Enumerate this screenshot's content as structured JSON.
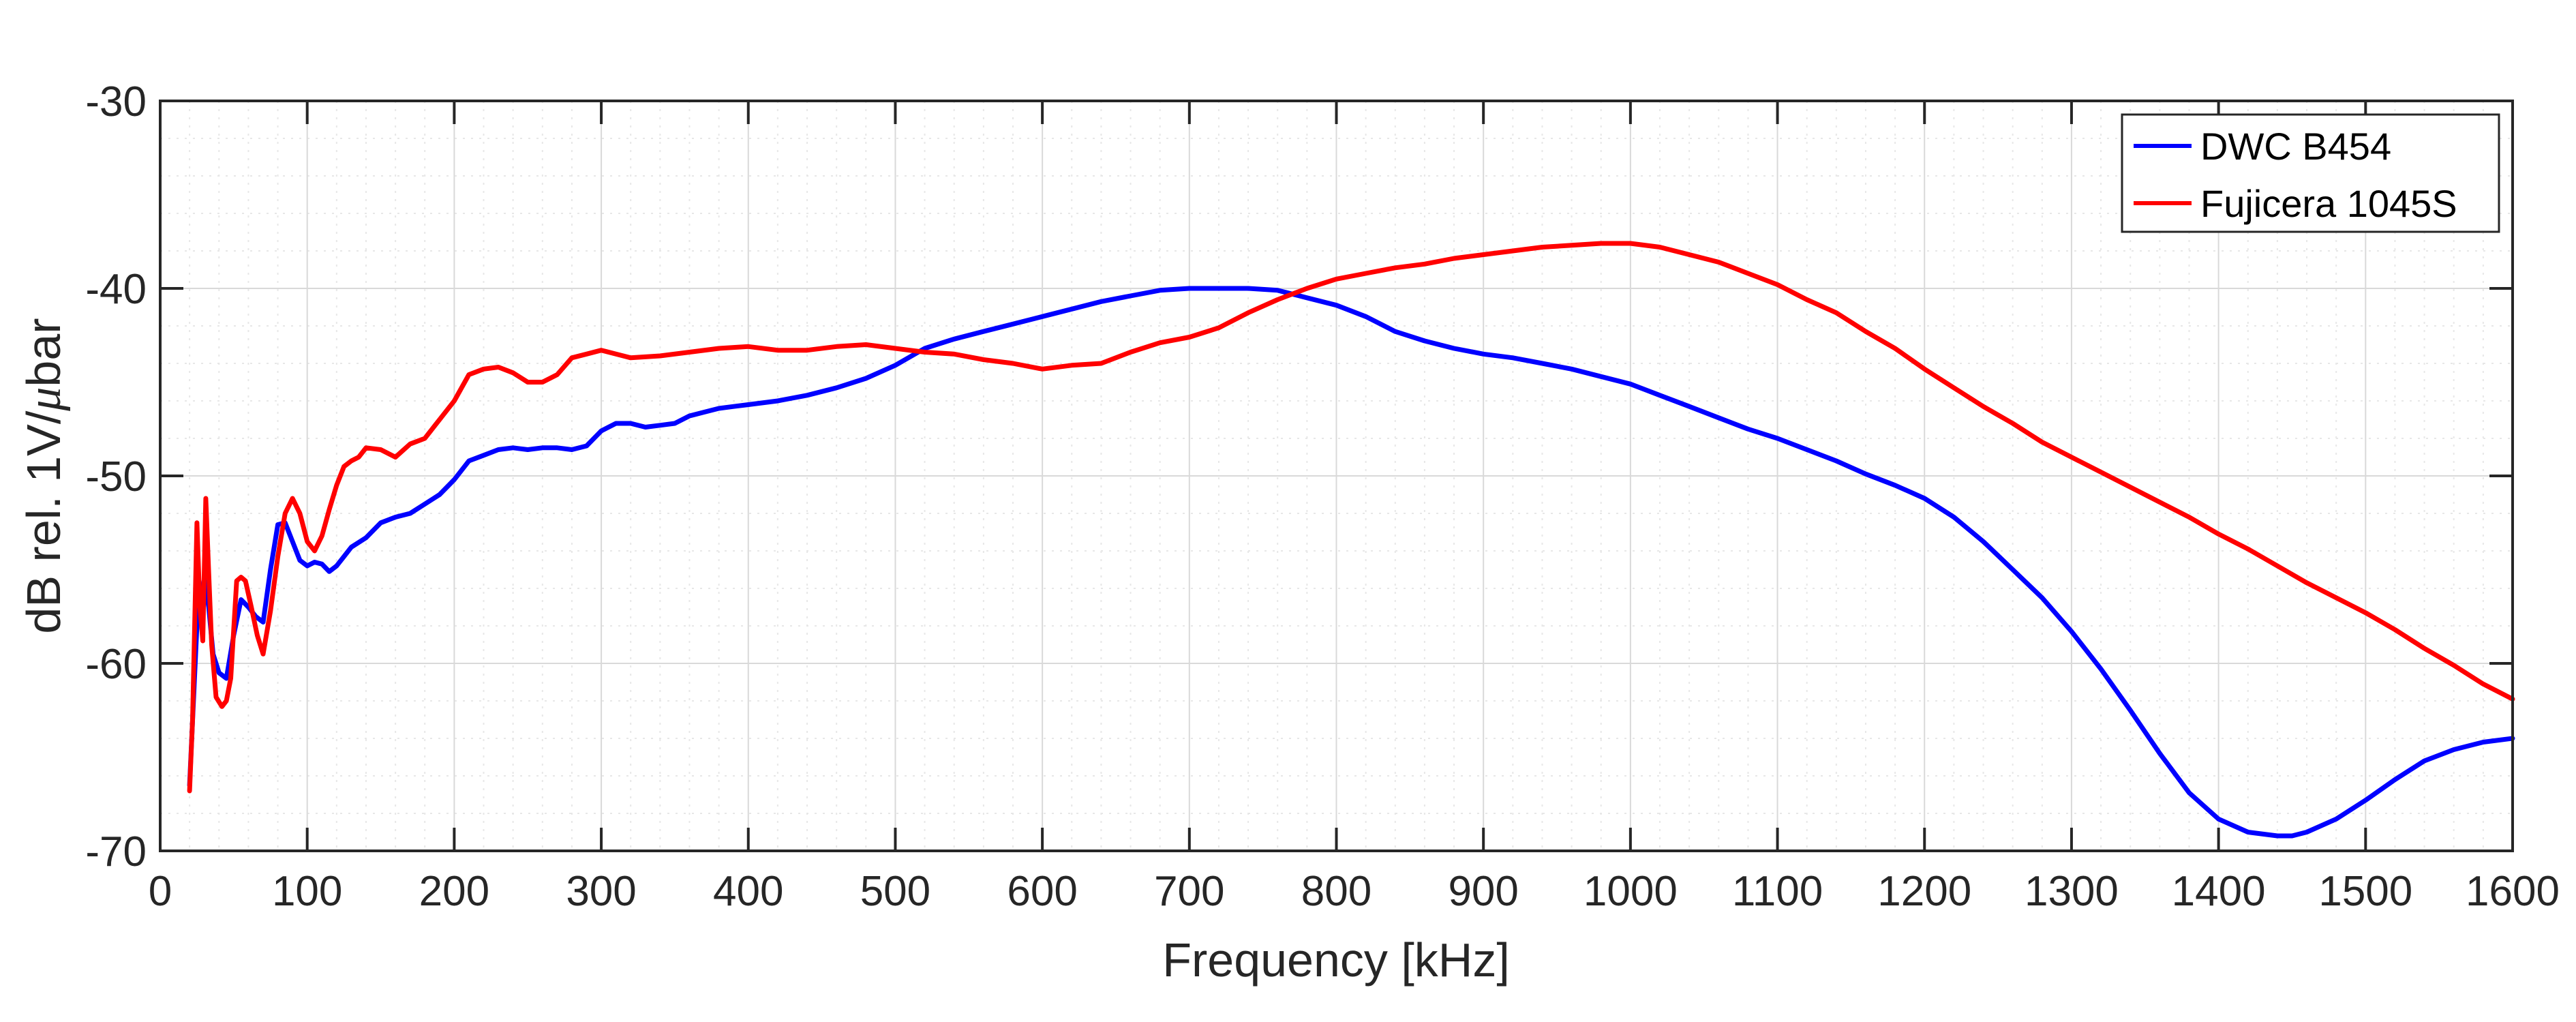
{
  "chart_data": {
    "type": "line",
    "title": "",
    "xlabel": "Frequency [kHz]",
    "ylabel_parts": [
      "dB rel. 1V/",
      "μ",
      "bar"
    ],
    "xlim": [
      0,
      1600
    ],
    "ylim": [
      -70,
      -30
    ],
    "x_ticks": [
      0,
      100,
      200,
      300,
      400,
      500,
      600,
      700,
      800,
      900,
      1000,
      1100,
      1200,
      1300,
      1400,
      1500,
      1600
    ],
    "y_ticks": [
      -70,
      -60,
      -50,
      -40,
      -30
    ],
    "x_tick_labels": [
      "0",
      "100",
      "200",
      "300",
      "400",
      "500",
      "600",
      "700",
      "800",
      "900",
      "1000",
      "1100",
      "1200",
      "1300",
      "1400",
      "1500",
      "1600"
    ],
    "y_tick_labels": [
      "-70",
      "-60",
      "-50",
      "-40",
      "-30"
    ],
    "x_minor_step": 20,
    "y_minor_step": 2,
    "grid": true,
    "legend_position": "top-right",
    "series": [
      {
        "name": "DWC B454",
        "color": "#0000ff",
        "x": [
          20,
          25,
          30,
          33,
          36,
          40,
          45,
          50,
          55,
          60,
          65,
          70,
          75,
          80,
          85,
          90,
          95,
          100,
          105,
          110,
          115,
          120,
          130,
          140,
          150,
          160,
          170,
          180,
          190,
          200,
          210,
          220,
          230,
          240,
          250,
          260,
          270,
          280,
          290,
          300,
          310,
          320,
          330,
          340,
          350,
          360,
          370,
          380,
          390,
          400,
          420,
          440,
          460,
          480,
          500,
          520,
          540,
          560,
          580,
          600,
          620,
          640,
          660,
          680,
          700,
          720,
          740,
          760,
          780,
          800,
          820,
          840,
          860,
          880,
          900,
          920,
          940,
          960,
          980,
          1000,
          1020,
          1040,
          1060,
          1080,
          1100,
          1120,
          1140,
          1160,
          1180,
          1200,
          1220,
          1240,
          1260,
          1280,
          1300,
          1320,
          1340,
          1360,
          1380,
          1400,
          1420,
          1440,
          1450,
          1460,
          1480,
          1500,
          1520,
          1540,
          1560,
          1580,
          1600
        ],
        "y": [
          -66.5,
          -58,
          -55.5,
          -57,
          -59.5,
          -60.5,
          -60.8,
          -58.5,
          -56.6,
          -57,
          -57.5,
          -57.8,
          -55,
          -52.6,
          -52.5,
          -53.5,
          -54.5,
          -54.8,
          -54.6,
          -54.7,
          -55.1,
          -54.8,
          -53.8,
          -53.3,
          -52.5,
          -52.2,
          -52,
          -51.5,
          -51,
          -50.2,
          -49.2,
          -48.9,
          -48.6,
          -48.5,
          -48.6,
          -48.5,
          -48.5,
          -48.6,
          -48.4,
          -47.6,
          -47.2,
          -47.2,
          -47.4,
          -47.3,
          -47.2,
          -46.8,
          -46.6,
          -46.4,
          -46.3,
          -46.2,
          -46,
          -45.7,
          -45.3,
          -44.8,
          -44.1,
          -43.2,
          -42.7,
          -42.3,
          -41.9,
          -41.5,
          -41.1,
          -40.7,
          -40.4,
          -40.1,
          -40,
          -40,
          -40,
          -40.1,
          -40.5,
          -40.9,
          -41.5,
          -42.3,
          -42.8,
          -43.2,
          -43.5,
          -43.7,
          -44,
          -44.3,
          -44.7,
          -45.1,
          -45.7,
          -46.3,
          -46.9,
          -47.5,
          -48,
          -48.6,
          -49.2,
          -49.9,
          -50.5,
          -51.2,
          -52.2,
          -53.5,
          -55,
          -56.5,
          -58.3,
          -60.3,
          -62.5,
          -64.8,
          -66.9,
          -68.3,
          -69,
          -69.2,
          -69.2,
          -69,
          -68.3,
          -67.3,
          -66.2,
          -65.2,
          -64.6,
          -64.2,
          -64
        ]
      },
      {
        "name": "Fujicera 1045S",
        "color": "#ff0000",
        "x": [
          20,
          22,
          25,
          27,
          29,
          31,
          33,
          35,
          38,
          42,
          45,
          48,
          52,
          55,
          58,
          62,
          66,
          70,
          75,
          80,
          85,
          90,
          95,
          100,
          105,
          110,
          115,
          120,
          125,
          130,
          135,
          140,
          150,
          160,
          170,
          180,
          190,
          200,
          210,
          220,
          230,
          240,
          250,
          260,
          270,
          280,
          290,
          300,
          310,
          320,
          340,
          360,
          380,
          400,
          420,
          440,
          460,
          480,
          500,
          520,
          540,
          560,
          580,
          600,
          620,
          640,
          660,
          680,
          700,
          720,
          740,
          760,
          780,
          800,
          820,
          840,
          860,
          880,
          900,
          920,
          940,
          960,
          980,
          1000,
          1020,
          1040,
          1060,
          1080,
          1100,
          1120,
          1140,
          1160,
          1180,
          1200,
          1220,
          1240,
          1260,
          1280,
          1300,
          1320,
          1340,
          1360,
          1380,
          1400,
          1420,
          1440,
          1460,
          1480,
          1500,
          1520,
          1540,
          1560,
          1580,
          1600
        ],
        "y": [
          -66.8,
          -63,
          -52.5,
          -57,
          -58.8,
          -51.2,
          -55.2,
          -59,
          -61.8,
          -62.3,
          -62,
          -60.8,
          -55.6,
          -55.4,
          -55.6,
          -57,
          -58.5,
          -59.5,
          -57.2,
          -54.3,
          -52,
          -51.2,
          -52,
          -53.5,
          -54,
          -53.2,
          -51.8,
          -50.5,
          -49.5,
          -49.2,
          -49,
          -48.5,
          -48.6,
          -49,
          -48.3,
          -48,
          -47,
          -46,
          -44.6,
          -44.3,
          -44.2,
          -44.5,
          -45,
          -45,
          -44.6,
          -43.7,
          -43.5,
          -43.3,
          -43.5,
          -43.7,
          -43.6,
          -43.4,
          -43.2,
          -43.1,
          -43.3,
          -43.3,
          -43.1,
          -43,
          -43.2,
          -43.4,
          -43.5,
          -43.8,
          -44,
          -44.3,
          -44.1,
          -44,
          -43.4,
          -42.9,
          -42.6,
          -42.1,
          -41.3,
          -40.6,
          -40,
          -39.5,
          -39.2,
          -38.9,
          -38.7,
          -38.4,
          -38.2,
          -38,
          -37.8,
          -37.7,
          -37.6,
          -37.6,
          -37.8,
          -38.2,
          -38.6,
          -39.2,
          -39.8,
          -40.6,
          -41.3,
          -42.3,
          -43.2,
          -44.3,
          -45.3,
          -46.3,
          -47.2,
          -48.2,
          -49,
          -49.8,
          -50.6,
          -51.4,
          -52.2,
          -53.1,
          -53.9,
          -54.8,
          -55.7,
          -56.5,
          -57.3,
          -58.2,
          -59.2,
          -60.1,
          -61.1,
          -61.9
        ]
      }
    ]
  }
}
